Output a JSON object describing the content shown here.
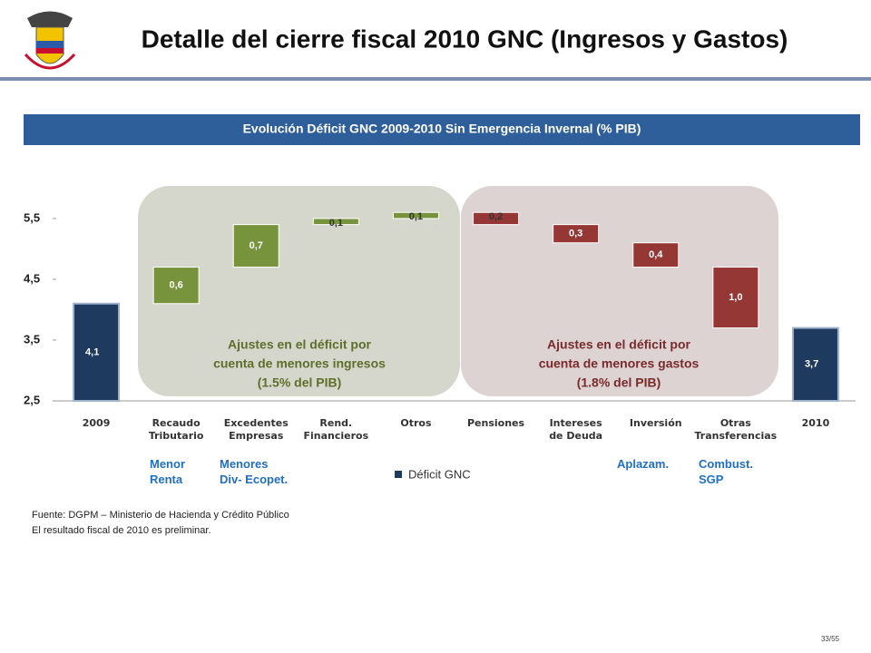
{
  "header": {
    "title": "Detalle del cierre fiscal 2010 GNC (Ingresos y Gastos)"
  },
  "chart_data": {
    "type": "waterfall",
    "title": "Evolución Déficit GNC 2009-2010 Sin Emergencia Invernal  (% PIB)",
    "categories": [
      "2009",
      "Recaudo\nTributario",
      "Excedentes\nEmpresas",
      "Rend.\nFinancieros",
      "Otros",
      "Pensiones",
      "Intereses\nde Deuda",
      "Inversión",
      "Otras\nTransferencias",
      "2010"
    ],
    "series": [
      {
        "name": "Déficit GNC",
        "color": "#1f3a5f",
        "values": [
          4.1,
          0.6,
          0.7,
          0.1,
          0.1,
          -0.2,
          -0.3,
          -0.4,
          -1.0,
          3.7
        ],
        "value_labels": [
          "4,1",
          "0,6",
          "0,7",
          "0,1",
          "0,1",
          "0,2",
          "0,3",
          "0,4",
          "1,0",
          "3,7"
        ],
        "colors": [
          "#1f3a5f",
          "#77933c",
          "#77933c",
          "#77933c",
          "#77933c",
          "#953735",
          "#953735",
          "#953735",
          "#953735",
          "#1f3a5f"
        ]
      }
    ],
    "ylim": [
      2.5,
      6.2
    ],
    "yticks": [
      {
        "value": 2.5,
        "label": "2,5"
      },
      {
        "value": 3.5,
        "label": "3,5"
      },
      {
        "value": 4.5,
        "label": "4,5"
      },
      {
        "value": 5.5,
        "label": "5,5"
      }
    ],
    "annotations": [
      {
        "lines": [
          "Ajustes en el déficit por",
          "cuenta de menores ingresos",
          "(1.5% del PIB)"
        ]
      },
      {
        "lines": [
          "Ajustes en el déficit por",
          "cuenta de menores gastos",
          "(1.8% del PIB)"
        ]
      }
    ],
    "notes": [
      "Menor\nRenta",
      "Menores\nDiv- Ecopet.",
      "Aplazam.",
      "Combust.\nSGP"
    ]
  },
  "footer": {
    "source": "Fuente: DGPM – Ministerio de Hacienda y Crédito Público",
    "note": "El resultado fiscal de 2010 es preliminar.",
    "page": "33/55"
  }
}
